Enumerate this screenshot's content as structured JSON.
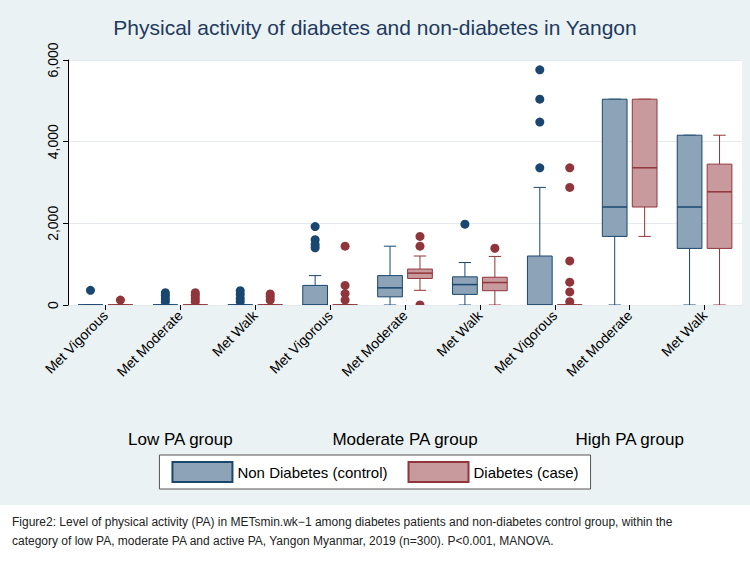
{
  "chart_data": {
    "type": "boxplot",
    "title": "Physical activity of diabetes and non-diabetes in Yangon",
    "categories": [
      "Met Vigorous",
      "Met Moderate",
      "Met Walk",
      "Met Vigorous",
      "Met Moderate",
      "Met Walk",
      "Met Vigorous",
      "Met Moderate",
      "Met Walk"
    ],
    "groups": [
      "Low PA group",
      "Moderate PA group",
      "High PA group"
    ],
    "ylim": [
      0,
      6000
    ],
    "yticks": [
      0,
      {
        "value": 2000,
        "label": "2,000"
      },
      {
        "value": 4000,
        "label": "4,000"
      },
      {
        "value": 6000,
        "label": "6,000"
      }
    ],
    "grid": true,
    "legend": "bottom",
    "series": [
      {
        "name": "Non Diabetes (control)",
        "color": "#1a476f",
        "boxes": [
          [
            0,
            0,
            0,
            0,
            0
          ],
          [
            0,
            0,
            0,
            0,
            0
          ],
          [
            0,
            0,
            0,
            0,
            0
          ],
          [
            0,
            0,
            0,
            480,
            720
          ],
          [
            0,
            200,
            420,
            720,
            1440
          ],
          [
            0,
            260,
            500,
            690,
            1040
          ],
          [
            0,
            0,
            0,
            1200,
            2880
          ],
          [
            0,
            1680,
            2400,
            5040,
            5040
          ],
          [
            0,
            1386,
            2400,
            4158,
            4158
          ]
        ],
        "outliers": [
          [
            360
          ],
          [
            300,
            240,
            160,
            80
          ],
          [
            350,
            260,
            160,
            80
          ],
          [
            1920,
            1600,
            1480,
            1400
          ],
          [],
          [
            1980
          ],
          [
            5760,
            5040,
            4480,
            3360
          ],
          [],
          []
        ]
      },
      {
        "name": "Diabetes (case)",
        "color": "#90353b",
        "boxes": [
          [
            0,
            0,
            0,
            0,
            0
          ],
          [
            0,
            0,
            0,
            0,
            0
          ],
          [
            0,
            0,
            0,
            0,
            0
          ],
          [
            0,
            0,
            0,
            0,
            0
          ],
          [
            360,
            650,
            780,
            880,
            1200
          ],
          [
            0,
            350,
            550,
            680,
            1190
          ],
          [
            0,
            0,
            0,
            0,
            0
          ],
          [
            1680,
            2400,
            3360,
            5040,
            5040
          ],
          [
            0,
            1386,
            2772,
            3450,
            4158
          ]
        ],
        "outliers": [
          [
            120
          ],
          [
            300,
            240,
            160,
            80
          ],
          [
            270,
            200,
            120
          ],
          [
            1440,
            480,
            280,
            120
          ],
          [
            1680,
            1440,
            0
          ],
          [
            1390
          ],
          [
            3360,
            2880,
            1080,
            560,
            320,
            80
          ],
          [],
          []
        ]
      }
    ],
    "caption": "Figure2: Level of physical activity (PA) in METsmin.wk−1 among diabetes patients and non-diabetes control group, within the category of low PA, moderate PA and active PA, Yangon Myanmar, 2019 (n=300).  P<0.001, MANOVA."
  }
}
